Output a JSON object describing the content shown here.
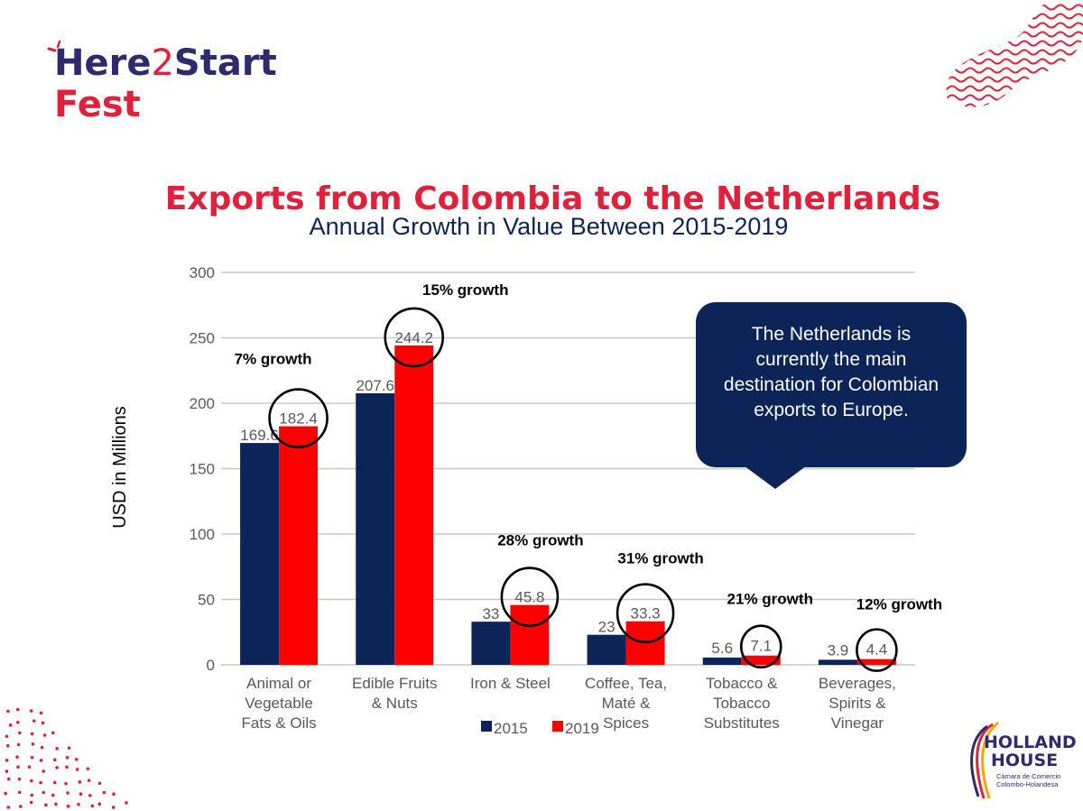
{
  "logo": {
    "line1_part1": "Here",
    "line1_digit": "2",
    "line1_part2": "Start",
    "line2": "Fest"
  },
  "title": "Exports from Colombia to the Netherlands",
  "callout": {
    "text": "The Netherlands is currently the main destination for Colombian exports to Europe."
  },
  "holland_house": {
    "word1": "HOLLAND",
    "word2": "HOUSE",
    "sub1": "Cámara de Comercio",
    "sub2": "Colombo-Holandesa"
  },
  "colors": {
    "brand_red": "#e0213b",
    "brand_navy": "#2d2a6e",
    "series_2015": "#0d2458",
    "series_2019": "#ff0000",
    "callout_bg": "#0d2458"
  },
  "chart_data": {
    "type": "bar",
    "title": "Annual Growth in Value Between 2015-2019",
    "xlabel": "",
    "ylabel": "USD in Millions",
    "ylim": [
      0,
      300
    ],
    "yticks": [
      0,
      50,
      100,
      150,
      200,
      250,
      300
    ],
    "grid": true,
    "legend": "bottom",
    "categories": [
      [
        "Animal or",
        "Vegetable",
        "Fats & Oils"
      ],
      [
        "Edible Fruits",
        "& Nuts"
      ],
      [
        "Iron & Steel"
      ],
      [
        "Coffee, Tea,",
        "Maté &",
        "Spices"
      ],
      [
        "Tobacco &",
        "Tobacco",
        "Substitutes"
      ],
      [
        "Beverages,",
        "Spirits &",
        "Vinegar"
      ]
    ],
    "series": [
      {
        "name": "2015",
        "values": [
          169.6,
          207.6,
          33,
          23,
          5.6,
          3.9
        ],
        "labels": [
          "169.6",
          "207.6",
          "33",
          "23",
          "5.6",
          "3.9"
        ]
      },
      {
        "name": "2019",
        "values": [
          182.4,
          244.2,
          45.8,
          33.3,
          7.1,
          4.4
        ],
        "labels": [
          "182.4",
          "244.2",
          "45.8",
          "33.3",
          "7.1",
          "4.4"
        ]
      }
    ],
    "annotations": [
      "7% growth",
      "15% growth",
      "28% growth",
      "31% growth",
      "21% growth",
      "12% growth"
    ]
  }
}
